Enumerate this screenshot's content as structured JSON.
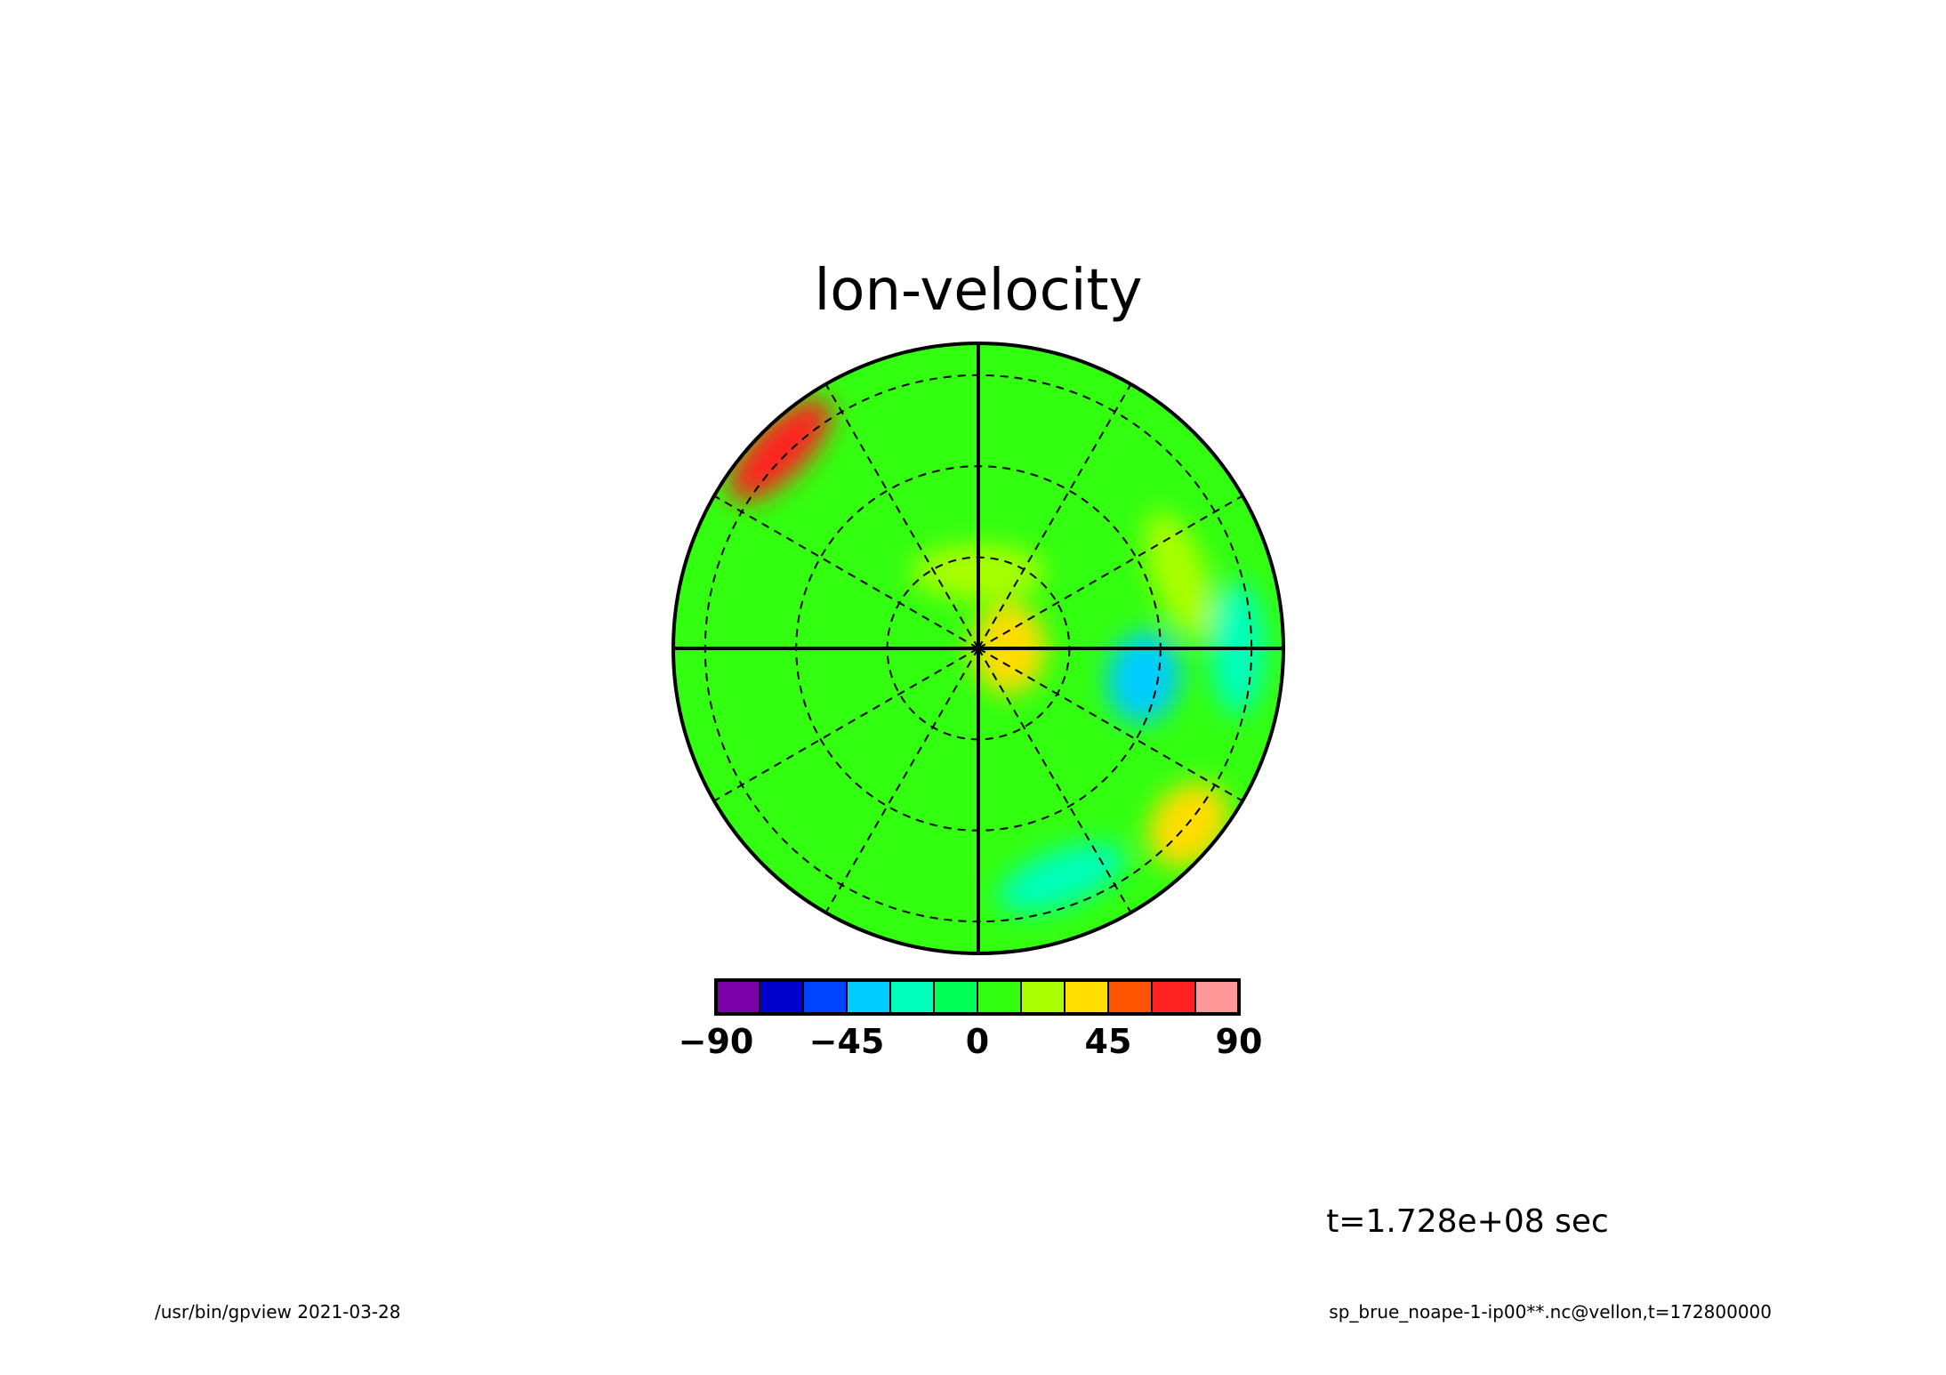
{
  "chart_data": {
    "type": "heatmap",
    "projection": "polar-stereographic",
    "title": "lon-velocity",
    "variable": "lon-velocity",
    "colorbar": {
      "levels": [
        -90,
        -75,
        -60,
        -45,
        -30,
        -15,
        0,
        15,
        30,
        45,
        60,
        75,
        90
      ],
      "colors": [
        "#7b00a8",
        "#0000cc",
        "#0044ff",
        "#00ccff",
        "#00ffbb",
        "#00ff55",
        "#33ff11",
        "#aaff00",
        "#ffdd00",
        "#ff5500",
        "#ff2222",
        "#ff9999"
      ],
      "tick_labels": [
        "−90",
        "−45",
        "0",
        "45",
        "90"
      ],
      "tick_values": [
        -90,
        -45,
        0,
        45,
        90
      ]
    },
    "fields": {
      "background_value": 5,
      "patches": [
        {
          "name": "central-positive",
          "r": 0.1,
          "theta": 0,
          "value": 38
        },
        {
          "name": "central-ring",
          "r": 0.25,
          "theta": 90,
          "value": 22
        },
        {
          "name": "outer-red-band",
          "r": 0.92,
          "theta": 135,
          "value": 70
        },
        {
          "name": "outer-cyan-east",
          "r": 0.85,
          "theta": 0,
          "value": -30
        },
        {
          "name": "outer-cyan-south",
          "r": 0.8,
          "theta": 290,
          "value": -25
        },
        {
          "name": "east-yellow-ring",
          "r": 0.7,
          "theta": 20,
          "value": 28
        },
        {
          "name": "southeast-yellow",
          "r": 0.9,
          "theta": 320,
          "value": 30
        },
        {
          "name": "blue-spot-east",
          "r": 0.55,
          "theta": 350,
          "value": -40
        }
      ]
    },
    "grid": {
      "latitude_circles_dashed": 3,
      "meridian_spokes_dashed": 12,
      "solid_axes": true
    },
    "time_label": "t=1.728e+08 sec"
  },
  "footer": {
    "left": "/usr/bin/gpview  2021-03-28",
    "right": "sp_brue_noape-1-ip00**.nc@vellon,t=172800000"
  }
}
